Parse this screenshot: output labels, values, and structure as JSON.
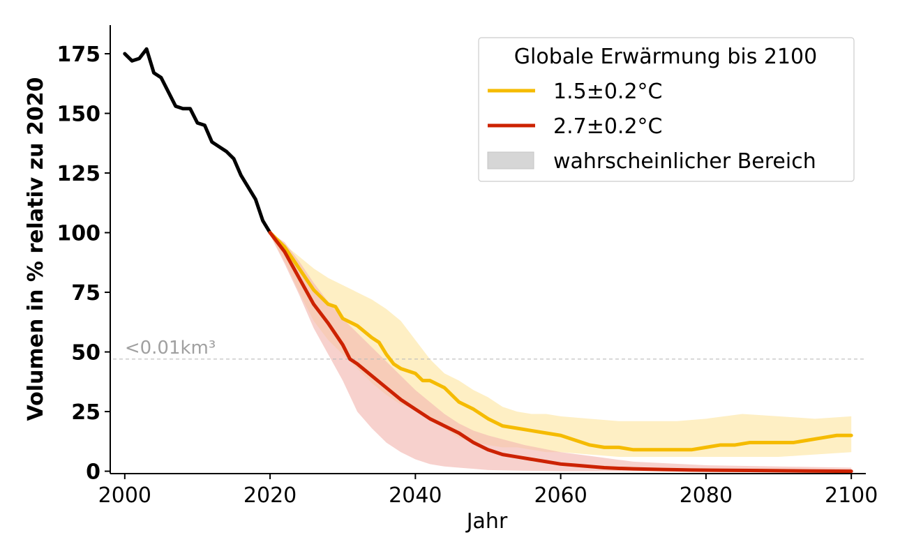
{
  "chart_data": {
    "type": "line",
    "title": "",
    "xlabel": "Jahr",
    "ylabel": "Volumen in % relativ zu 2020",
    "xlim": [
      1998,
      2102
    ],
    "ylim": [
      -1,
      187
    ],
    "xticks": [
      2000,
      2020,
      2040,
      2060,
      2080,
      2100
    ],
    "yticks": [
      0,
      25,
      50,
      75,
      100,
      125,
      150,
      175
    ],
    "grid": false,
    "legend": {
      "title": "Globale Erwärmung bis 2100",
      "placement": "top-right",
      "entries": [
        "1.5±0.2°C",
        "2.7±0.2°C",
        "wahrscheinlicher Bereich"
      ]
    },
    "annotation": {
      "text": "<0.01km³",
      "y": 47,
      "x": 2000
    },
    "colors": {
      "historical": "#000000",
      "ssp15": "#f5bb00",
      "ssp15_band": "#fde9b0",
      "ssp27": "#cc2200",
      "ssp27_band": "#f2b8b2",
      "reference_line": "#bbbbbb",
      "annotation": "#a0a0a0",
      "legend_patch": "#d6d6d6"
    },
    "series": [
      {
        "name": "",
        "role": "historical",
        "x": [
          2000,
          2001,
          2002,
          2003,
          2004,
          2005,
          2006,
          2007,
          2008,
          2009,
          2010,
          2011,
          2012,
          2013,
          2014,
          2015,
          2016,
          2017,
          2018,
          2019,
          2020
        ],
        "values": [
          175,
          172,
          173,
          177,
          167,
          165,
          159,
          153,
          152,
          152,
          146,
          145,
          138,
          136,
          134,
          131,
          124,
          119,
          114,
          105,
          100
        ]
      },
      {
        "name": "1.5±0.2°C",
        "role": "scenario",
        "x": [
          2020,
          2022,
          2024,
          2026,
          2028,
          2029,
          2030,
          2032,
          2034,
          2035,
          2036,
          2037,
          2038,
          2040,
          2041,
          2042,
          2044,
          2046,
          2048,
          2050,
          2052,
          2054,
          2056,
          2058,
          2060,
          2062,
          2064,
          2066,
          2068,
          2070,
          2072,
          2074,
          2076,
          2078,
          2080,
          2082,
          2084,
          2086,
          2088,
          2090,
          2092,
          2094,
          2096,
          2098,
          2100
        ],
        "values": [
          100,
          94,
          85,
          76,
          70,
          69,
          64,
          61,
          56,
          54,
          49,
          45,
          43,
          41,
          38,
          38,
          35,
          29,
          26,
          22,
          19,
          18,
          17,
          16,
          15,
          13,
          11,
          10,
          10,
          9,
          9,
          9,
          9,
          9,
          10,
          11,
          11,
          12,
          12,
          12,
          12,
          13,
          14,
          15,
          15
        ]
      },
      {
        "name": "2.7±0.2°C",
        "role": "scenario",
        "x": [
          2020,
          2022,
          2024,
          2026,
          2028,
          2030,
          2031,
          2032,
          2034,
          2036,
          2038,
          2040,
          2042,
          2044,
          2046,
          2048,
          2050,
          2052,
          2054,
          2056,
          2058,
          2060,
          2062,
          2064,
          2066,
          2068,
          2070,
          2074,
          2078,
          2082,
          2086,
          2090,
          2094,
          2100
        ],
        "values": [
          100,
          92,
          81,
          70,
          62,
          53,
          47,
          45,
          40,
          35,
          30,
          26,
          22,
          19,
          16,
          12,
          9,
          7,
          6,
          5,
          4,
          3,
          2.5,
          2,
          1.5,
          1.2,
          1,
          0.7,
          0.5,
          0.4,
          0.3,
          0.2,
          0.1,
          0
        ]
      }
    ],
    "bands": [
      {
        "name": "1.5±0.2°C",
        "x": [
          2020,
          2022,
          2024,
          2026,
          2028,
          2030,
          2032,
          2034,
          2036,
          2038,
          2040,
          2042,
          2044,
          2046,
          2048,
          2050,
          2052,
          2054,
          2056,
          2058,
          2060,
          2064,
          2068,
          2072,
          2076,
          2080,
          2085,
          2090,
          2095,
          2100
        ],
        "upper": [
          100,
          95,
          90,
          85,
          81,
          78,
          75,
          72,
          68,
          63,
          55,
          47,
          41,
          38,
          34,
          31,
          27,
          25,
          24,
          24,
          23,
          22,
          21,
          21,
          21,
          22,
          24,
          23,
          22,
          23
        ],
        "lower": [
          99,
          88,
          75,
          63,
          55,
          49,
          43,
          37,
          32,
          28,
          26,
          22,
          18,
          14,
          12,
          11,
          10,
          10,
          9,
          8,
          8,
          7,
          6,
          6,
          6,
          6,
          6,
          6,
          7,
          8
        ]
      },
      {
        "name": "2.7±0.2°C",
        "x": [
          2020,
          2022,
          2024,
          2026,
          2028,
          2030,
          2032,
          2034,
          2036,
          2038,
          2040,
          2042,
          2044,
          2046,
          2048,
          2050,
          2055,
          2060,
          2065,
          2070,
          2080,
          2090,
          2100
        ],
        "upper": [
          100,
          96,
          88,
          79,
          71,
          64,
          58,
          52,
          46,
          40,
          34,
          29,
          24,
          20,
          17,
          15,
          11,
          8,
          6,
          4,
          2.5,
          2,
          1.5
        ],
        "lower": [
          99,
          87,
          74,
          60,
          49,
          38,
          25,
          18,
          12,
          8,
          5,
          3,
          2,
          1.5,
          1,
          0.5,
          0.2,
          0,
          0,
          0,
          0,
          0,
          0
        ]
      }
    ]
  }
}
